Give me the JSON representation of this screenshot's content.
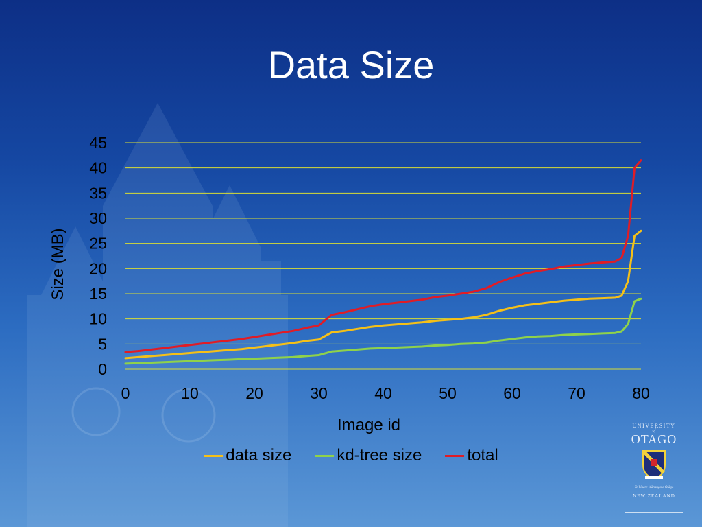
{
  "slide": {
    "title": "Data Size"
  },
  "logo": {
    "line1": "UNIVERSITY",
    "line2": "of",
    "line3": "OTAGO",
    "motto": "Te Whare Wānanga o Otāgo",
    "country": "NEW ZEALAND"
  },
  "colors": {
    "data_size": "#f5c018",
    "kd_tree_size": "#8fd24a",
    "total": "#e01c26",
    "gridline": "#d8dd35"
  },
  "chart_data": {
    "type": "line",
    "title": "",
    "xlabel": "Image id",
    "ylabel": "Size (MB)",
    "xlim": [
      0,
      80
    ],
    "ylim": [
      0,
      45
    ],
    "x_ticks": [
      0,
      10,
      20,
      30,
      40,
      50,
      60,
      70,
      80
    ],
    "y_ticks": [
      0,
      5,
      10,
      15,
      20,
      25,
      30,
      35,
      40,
      45
    ],
    "grid": true,
    "legend_position": "bottom",
    "x": [
      0,
      2,
      4,
      6,
      8,
      10,
      12,
      14,
      16,
      18,
      20,
      22,
      24,
      26,
      28,
      30,
      32,
      34,
      36,
      38,
      40,
      42,
      44,
      46,
      48,
      50,
      52,
      54,
      56,
      58,
      60,
      62,
      64,
      66,
      68,
      70,
      72,
      74,
      76,
      77,
      78,
      79,
      80
    ],
    "series": [
      {
        "name": "data size",
        "values": [
          2.2,
          2.4,
          2.6,
          2.8,
          3.0,
          3.2,
          3.4,
          3.6,
          3.8,
          4.0,
          4.3,
          4.6,
          4.9,
          5.2,
          5.6,
          5.9,
          7.3,
          7.6,
          8.0,
          8.4,
          8.7,
          8.9,
          9.1,
          9.3,
          9.6,
          9.8,
          10.0,
          10.3,
          10.8,
          11.6,
          12.2,
          12.7,
          13.0,
          13.3,
          13.6,
          13.8,
          14.0,
          14.1,
          14.2,
          14.6,
          17.5,
          26.5,
          27.5
        ]
      },
      {
        "name": "kd-tree size",
        "values": [
          1.1,
          1.2,
          1.3,
          1.4,
          1.5,
          1.6,
          1.7,
          1.8,
          1.9,
          2.0,
          2.1,
          2.2,
          2.3,
          2.4,
          2.6,
          2.8,
          3.5,
          3.7,
          3.9,
          4.1,
          4.2,
          4.3,
          4.4,
          4.5,
          4.7,
          4.8,
          5.0,
          5.1,
          5.3,
          5.7,
          6.0,
          6.3,
          6.5,
          6.6,
          6.8,
          6.9,
          7.0,
          7.1,
          7.2,
          7.5,
          9.0,
          13.5,
          14.0
        ]
      },
      {
        "name": "total",
        "values": [
          3.4,
          3.6,
          3.9,
          4.2,
          4.5,
          4.8,
          5.1,
          5.4,
          5.7,
          6.0,
          6.4,
          6.8,
          7.2,
          7.6,
          8.2,
          8.7,
          10.8,
          11.3,
          11.9,
          12.5,
          12.9,
          13.2,
          13.5,
          13.8,
          14.3,
          14.6,
          15.0,
          15.4,
          16.1,
          17.3,
          18.2,
          19.0,
          19.5,
          19.9,
          20.4,
          20.7,
          21.0,
          21.2,
          21.4,
          22.1,
          26.5,
          40.0,
          41.5
        ]
      }
    ]
  }
}
